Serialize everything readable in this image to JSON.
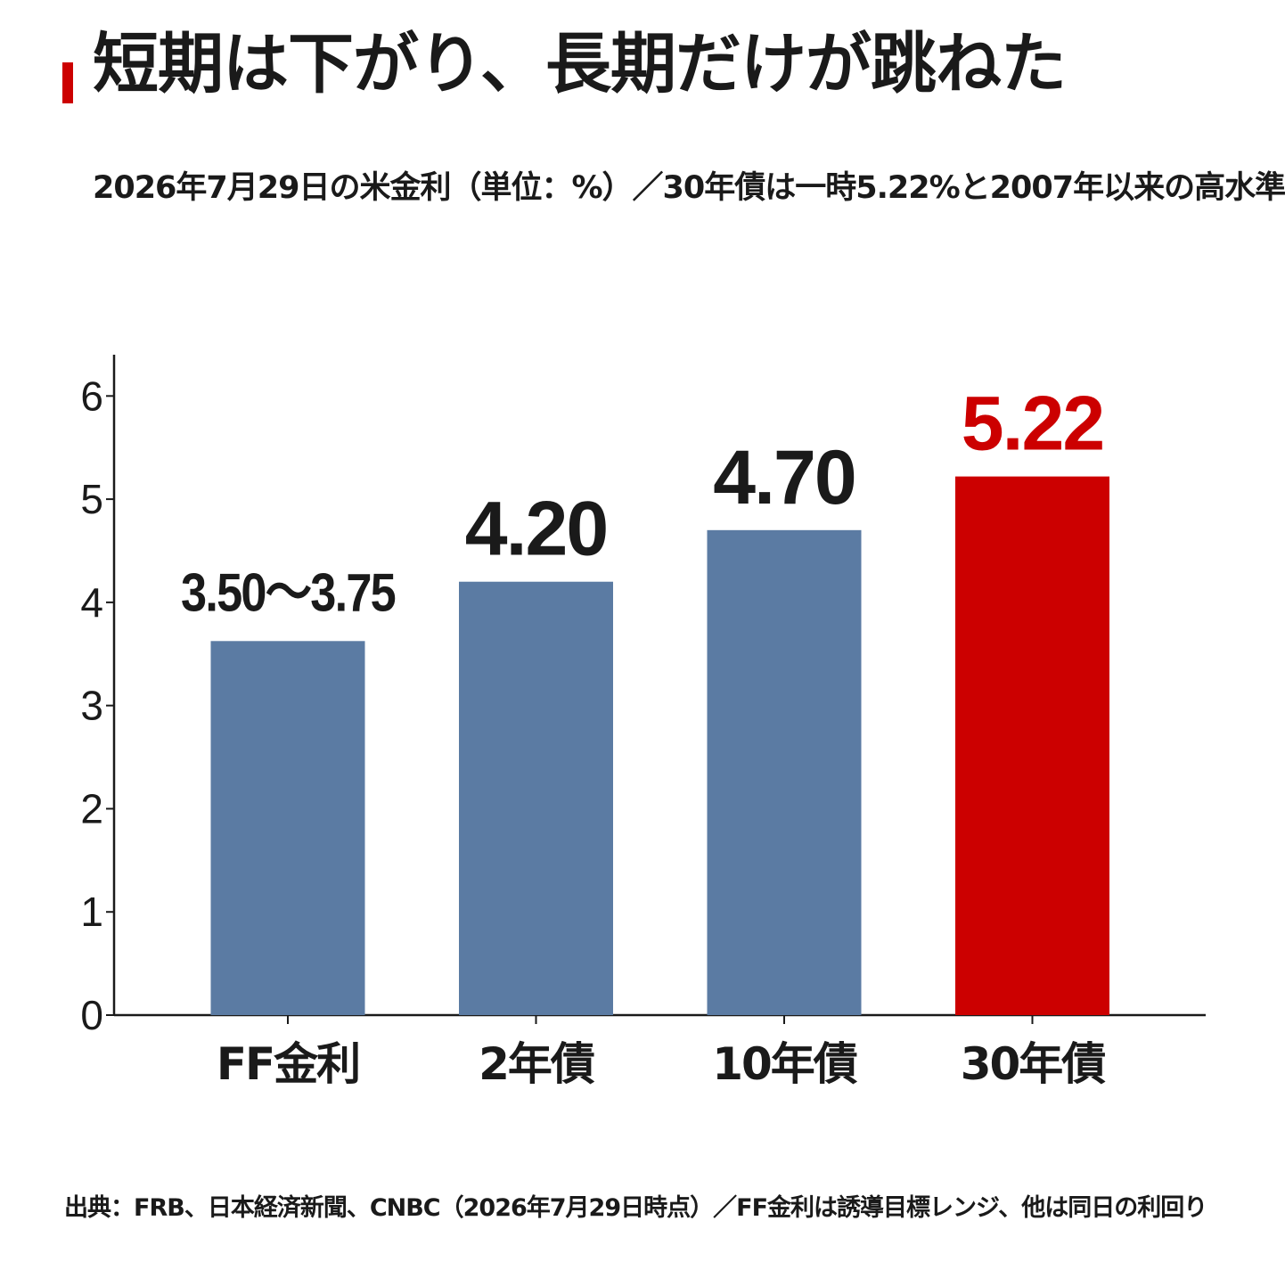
{
  "title": "短期は下がり、長期だけが跳ねた",
  "subtitle": "2026年7月29日の米金利（単位：%）／30年債は一時5.22%と2007年以来の高水準",
  "source": "出典：FRB、日本経済新聞、CNBC（2026年7月29日時点）／FF金利は誘導目標レンジ、他は同日の利回り",
  "colors": {
    "accent": "#cc0000",
    "bar": "#5b7ba3",
    "highlight": "#cc0000",
    "text": "#1a1a1a"
  },
  "chart_data": {
    "type": "bar",
    "categories": [
      "FF金利",
      "2年債",
      "10年債",
      "30年債"
    ],
    "values": [
      3.625,
      4.2,
      4.7,
      5.22
    ],
    "value_labels": [
      "3.50～3.75",
      "4.20",
      "4.70",
      "5.22"
    ],
    "highlight_index": 3,
    "ylim": [
      0,
      6.4
    ],
    "yticks": [
      0,
      1,
      2,
      3,
      4,
      5,
      6
    ],
    "grid": false,
    "legend": "none"
  }
}
